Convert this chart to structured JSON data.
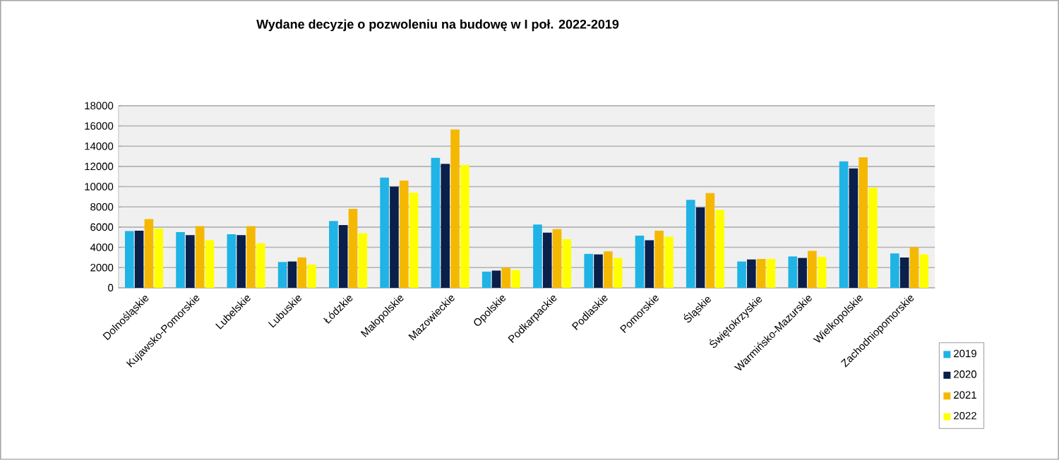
{
  "chart_data": {
    "type": "bar",
    "title": "Wydane decyzje o pozwoleniu na budowę w I poł. 2022-2019",
    "categories": [
      "Dolnośląskie",
      "Kujawsko-Pomorskie",
      "Lubelskie",
      "Lubuskie",
      "Łódzkie",
      "Małopolskie",
      "Mazowieckie",
      "Opolskie",
      "Podkarpackie",
      "Podlaskie",
      "Pomorskie",
      "Śląskie",
      "Świętokrzyskie",
      "Warmińsko-Mazurskie",
      "Wielkopolskie",
      "Zachodniopomorskie"
    ],
    "series": [
      {
        "name": "2019",
        "color": "#1fb3e6",
        "values": [
          5600,
          5500,
          5300,
          2550,
          6600,
          10900,
          12850,
          1600,
          6250,
          3350,
          5150,
          8700,
          2600,
          3100,
          12500,
          3400
        ]
      },
      {
        "name": "2020",
        "color": "#0a1f4a",
        "values": [
          5650,
          5200,
          5200,
          2600,
          6200,
          10000,
          12250,
          1700,
          5450,
          3300,
          4700,
          7950,
          2800,
          2950,
          11800,
          3000
        ]
      },
      {
        "name": "2021",
        "color": "#f5b800",
        "values": [
          6800,
          6100,
          6100,
          3000,
          7800,
          10600,
          15650,
          2000,
          5800,
          3600,
          5650,
          9350,
          2850,
          3650,
          12900,
          4000
        ]
      },
      {
        "name": "2022",
        "color": "#ffff00",
        "values": [
          5850,
          4700,
          4400,
          2300,
          5400,
          9400,
          12150,
          1750,
          4800,
          2950,
          5050,
          7700,
          2850,
          3050,
          9900,
          3300
        ]
      }
    ],
    "ylim": [
      0,
      18000
    ],
    "yticks": [
      0,
      2000,
      4000,
      6000,
      8000,
      10000,
      12000,
      14000,
      16000,
      18000
    ],
    "grid": "y",
    "legend": "bottom right"
  }
}
